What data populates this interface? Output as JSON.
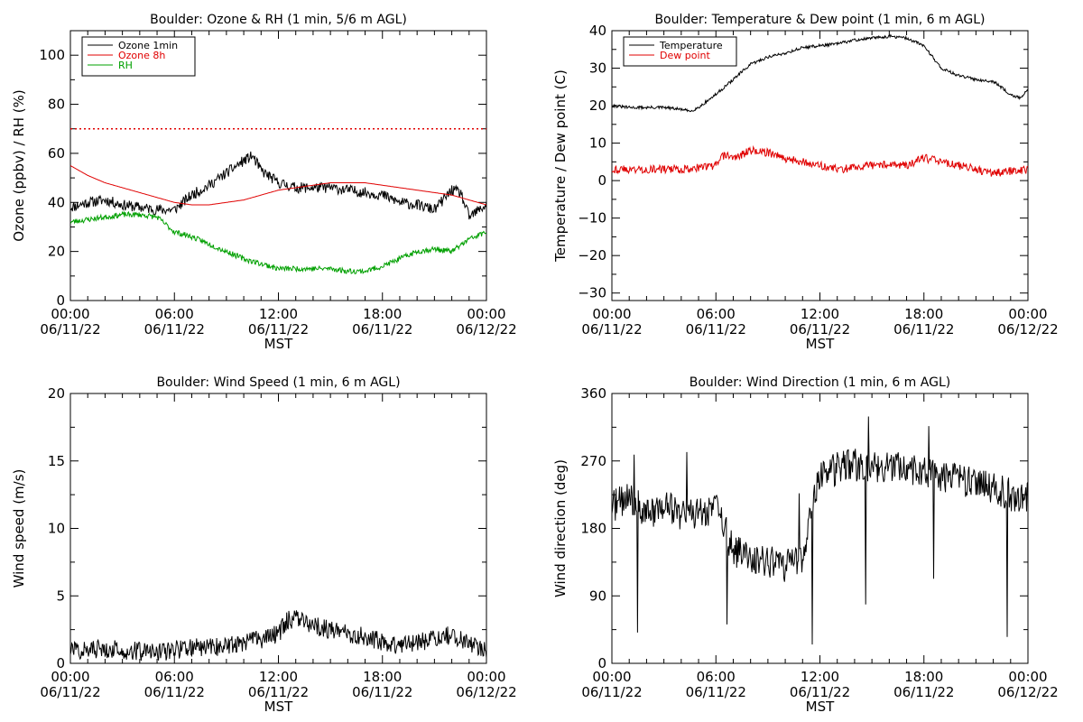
{
  "page": {
    "background": "#ffffff"
  },
  "chart_data": [
    {
      "id": "ozone",
      "type": "line",
      "title": "Boulder: Ozone & RH (1 min, 5/6 m AGL)",
      "xlabel": "MST",
      "ylabel": "Ozone (ppbv) / RH (%)",
      "xlim": [
        0,
        24
      ],
      "ylim": [
        0,
        110
      ],
      "yticks": [
        "0",
        "20",
        "40",
        "60",
        "80",
        "100"
      ],
      "ytick_values": [
        0,
        20,
        40,
        60,
        80,
        100
      ],
      "xtick_values": [
        0,
        6,
        12,
        18,
        24
      ],
      "xtick_labels": [
        [
          "00:00",
          "06/11/22"
        ],
        [
          "06:00",
          "06/11/22"
        ],
        [
          "12:00",
          "06/11/22"
        ],
        [
          "18:00",
          "06/11/22"
        ],
        [
          "00:00",
          "06/12/22"
        ]
      ],
      "grid": false,
      "legend": "top-left",
      "reference_line": {
        "y": 70,
        "color": "#e00000",
        "style": "dotted"
      },
      "series": [
        {
          "name": "Ozone 1min",
          "color": "#000000",
          "noise": 2.2,
          "seed": 11,
          "x": [
            0,
            1,
            2,
            3,
            4,
            5,
            6,
            7,
            8,
            9,
            10,
            10.5,
            11,
            12,
            13,
            14,
            15,
            16,
            17,
            18,
            19,
            20,
            21,
            22,
            22.5,
            23,
            24
          ],
          "y": [
            38,
            40,
            41,
            39,
            38,
            37,
            37,
            43,
            47,
            52,
            57,
            59,
            53,
            48,
            46,
            46,
            46,
            45,
            44,
            43,
            40,
            39,
            37,
            45,
            44,
            34,
            39
          ]
        },
        {
          "name": "Ozone 8h",
          "color": "#e00000",
          "noise": 0,
          "seed": 1,
          "x": [
            0,
            1,
            2,
            3,
            4,
            5,
            6,
            7,
            8,
            9,
            10,
            11,
            12,
            13,
            14,
            15,
            16,
            17,
            18,
            19,
            20,
            21,
            22,
            23,
            24
          ],
          "y": [
            55,
            51,
            48,
            46,
            44,
            42,
            40,
            39,
            39,
            40,
            41,
            43,
            45,
            46,
            47,
            48,
            48,
            48,
            47,
            46,
            45,
            44,
            43,
            41,
            39
          ]
        },
        {
          "name": "RH",
          "color": "#00a000",
          "noise": 1.1,
          "seed": 23,
          "x": [
            0,
            1,
            2,
            3,
            4,
            5,
            6,
            7,
            8,
            9,
            10,
            11,
            12,
            13,
            14,
            15,
            16,
            17,
            18,
            19,
            20,
            21,
            22,
            23,
            24
          ],
          "y": [
            32,
            33,
            34,
            35,
            35,
            34,
            28,
            26,
            23,
            20,
            17,
            15,
            13,
            13,
            13,
            13,
            12,
            12,
            14,
            17,
            20,
            21,
            20,
            25,
            28
          ]
        }
      ]
    },
    {
      "id": "temperature",
      "type": "line",
      "title": "Boulder: Temperature & Dew point (1 min, 6 m AGL)",
      "xlabel": "MST",
      "ylabel": "Temperature / Dew point (C)",
      "xlim": [
        0,
        24
      ],
      "ylim": [
        -32,
        40
      ],
      "yticks": [
        "−30",
        "−20",
        "−10",
        "0",
        "10",
        "20",
        "30",
        "40"
      ],
      "ytick_values": [
        -30,
        -20,
        -10,
        0,
        10,
        20,
        30,
        40
      ],
      "xtick_values": [
        0,
        6,
        12,
        18,
        24
      ],
      "xtick_labels": [
        [
          "00:00",
          "06/11/22"
        ],
        [
          "06:00",
          "06/11/22"
        ],
        [
          "12:00",
          "06/11/22"
        ],
        [
          "18:00",
          "06/11/22"
        ],
        [
          "00:00",
          "06/12/22"
        ]
      ],
      "grid": false,
      "legend": "top-left",
      "series": [
        {
          "name": "Temperature",
          "color": "#000000",
          "noise": 0.4,
          "seed": 31,
          "x": [
            0,
            1,
            2,
            3,
            4,
            4.5,
            5,
            6,
            7,
            8,
            9,
            10,
            11,
            12,
            13,
            14,
            15,
            16,
            17,
            18,
            19,
            20,
            21,
            22,
            23,
            23.5,
            24
          ],
          "y": [
            20,
            19.5,
            19.5,
            19.5,
            19,
            18.5,
            19.5,
            23,
            27,
            31,
            33,
            34,
            35.5,
            36,
            36.5,
            37.5,
            38,
            38.5,
            38,
            36,
            30,
            28,
            27,
            26.5,
            23,
            22,
            24
          ]
        },
        {
          "name": "Dew point",
          "color": "#e00000",
          "noise": 1.1,
          "seed": 43,
          "x": [
            0,
            1,
            2,
            3,
            4,
            5,
            6,
            6.5,
            7,
            8,
            9,
            10,
            11,
            12,
            13,
            14,
            15,
            16,
            17,
            18,
            19,
            20,
            21,
            22,
            23,
            24
          ],
          "y": [
            3,
            3,
            3,
            3,
            3,
            3.5,
            4,
            7,
            6,
            8,
            7.5,
            6,
            5,
            4,
            3,
            3.5,
            4,
            4.5,
            4,
            6,
            5,
            4,
            3,
            2,
            2.5,
            3
          ]
        }
      ]
    },
    {
      "id": "windspeed",
      "type": "line",
      "title": "Boulder: Wind Speed (1 min, 6 m AGL)",
      "xlabel": "MST",
      "ylabel": "Wind speed (m/s)",
      "xlim": [
        0,
        24
      ],
      "ylim": [
        0,
        20
      ],
      "yticks": [
        "0",
        "5",
        "10",
        "15",
        "20"
      ],
      "ytick_values": [
        0,
        5,
        10,
        15,
        20
      ],
      "xtick_values": [
        0,
        6,
        12,
        18,
        24
      ],
      "xtick_labels": [
        [
          "00:00",
          "06/11/22"
        ],
        [
          "06:00",
          "06/11/22"
        ],
        [
          "12:00",
          "06/11/22"
        ],
        [
          "18:00",
          "06/11/22"
        ],
        [
          "00:00",
          "06/12/22"
        ]
      ],
      "grid": false,
      "legend": "none",
      "series": [
        {
          "color": "#000000",
          "noise": 0.7,
          "seed": 57,
          "clip_min": 0,
          "x": [
            0,
            1,
            2,
            3,
            4,
            5,
            6,
            7,
            8,
            9,
            10,
            11,
            12,
            12.5,
            13,
            14,
            15,
            16,
            17,
            18,
            19,
            20,
            21,
            22,
            23,
            24
          ],
          "y": [
            1,
            1,
            1.1,
            1,
            0.9,
            0.8,
            1,
            1.2,
            1.2,
            1.3,
            1.6,
            1.8,
            2.2,
            3.2,
            3.3,
            2.8,
            2.5,
            2.2,
            2,
            1.6,
            1.3,
            1.5,
            1.9,
            2.1,
            1.6,
            1
          ]
        }
      ]
    },
    {
      "id": "winddir",
      "type": "line",
      "title": "Boulder: Wind Direction (1 min, 6 m AGL)",
      "xlabel": "MST",
      "ylabel": "Wind direction (deg)",
      "xlim": [
        0,
        24
      ],
      "ylim": [
        0,
        360
      ],
      "yticks": [
        "0",
        "90",
        "180",
        "270",
        "360"
      ],
      "ytick_values": [
        0,
        90,
        180,
        270,
        360
      ],
      "xtick_values": [
        0,
        6,
        12,
        18,
        24
      ],
      "xtick_labels": [
        [
          "00:00",
          "06/11/22"
        ],
        [
          "06:00",
          "06/11/22"
        ],
        [
          "12:00",
          "06/11/22"
        ],
        [
          "18:00",
          "06/11/22"
        ],
        [
          "00:00",
          "06/12/22"
        ]
      ],
      "grid": false,
      "legend": "none",
      "series": [
        {
          "color": "#000000",
          "noise": 22,
          "seed": 71,
          "clip_min": 0,
          "clip_max": 360,
          "spike_rate": 0.012,
          "x": [
            0,
            1,
            2,
            3,
            4,
            5,
            6,
            7,
            8,
            9,
            10,
            11,
            11.5,
            12,
            13,
            14,
            15,
            16,
            17,
            18,
            19,
            20,
            21,
            22,
            23,
            24
          ],
          "y": [
            210,
            220,
            200,
            210,
            200,
            200,
            210,
            150,
            140,
            135,
            130,
            140,
            200,
            250,
            260,
            265,
            260,
            265,
            260,
            255,
            250,
            245,
            240,
            235,
            225,
            220
          ]
        }
      ]
    }
  ]
}
